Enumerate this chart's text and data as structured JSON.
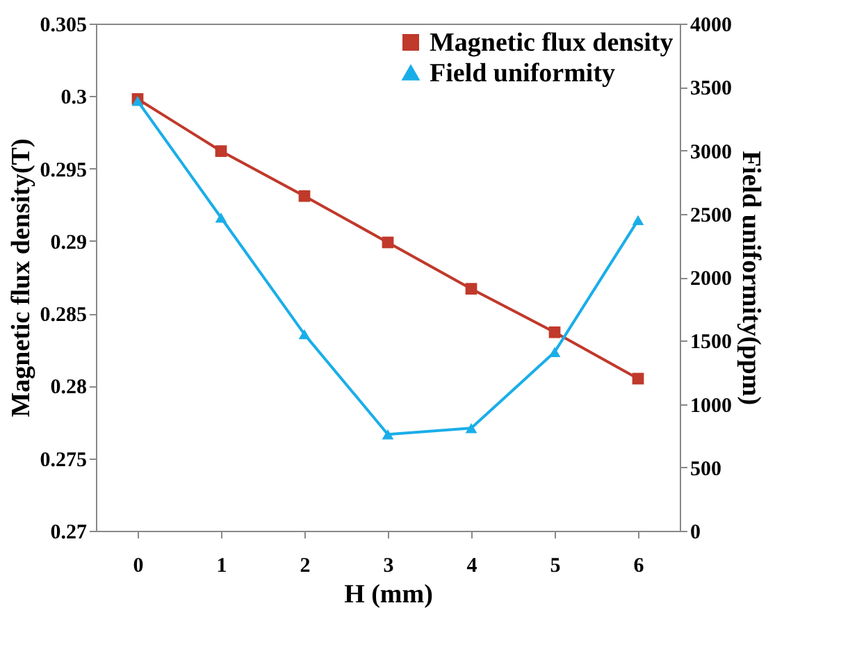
{
  "chart_data": {
    "type": "line",
    "xlabel": "H (mm)",
    "ylabel": "Magnetic flux density(T)",
    "y2label": "Field uniformity(ppm)",
    "categories": [
      "0",
      "1",
      "2",
      "3",
      "4",
      "5",
      "6"
    ],
    "series": [
      {
        "name": "Magnetic flux density",
        "color": "#c0392b",
        "marker": "square",
        "values": [
          0.2998,
          0.2962,
          0.2931,
          0.2899,
          0.2867,
          0.2837,
          0.2805
        ]
      },
      {
        "name": "Field uniformity",
        "color": "#1aaee8",
        "marker": "triangle",
        "axis": "y2",
        "values": [
          3390,
          2470,
          1550,
          760,
          810,
          1410,
          2450
        ]
      }
    ],
    "ylim": [
      0.27,
      0.305
    ],
    "yticks": [
      0.27,
      0.275,
      0.28,
      0.285,
      0.29,
      0.295,
      0.3,
      0.305
    ],
    "y2lim": [
      0,
      4000
    ],
    "y2ticks": [
      0,
      500,
      1000,
      1500,
      2000,
      2500,
      3000,
      3500,
      4000
    ],
    "grid": false,
    "legend": "top right",
    "line_style": "solid"
  }
}
